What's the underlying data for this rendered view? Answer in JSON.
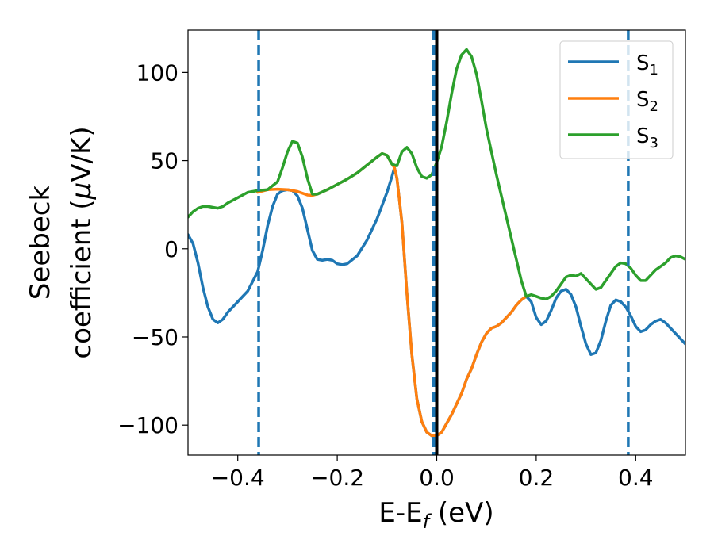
{
  "chart_data": {
    "type": "line",
    "title": "",
    "xlabel": "E-E",
    "xlabel_sub": "f",
    "xlabel_unit": " (eV)",
    "ylabel_line1": "Seebeck",
    "ylabel_line2_prefix": "coefficient  (",
    "ylabel_mu": "μ",
    "ylabel_line2_suffix": "V/K)",
    "xlim": [
      -0.5,
      0.5
    ],
    "ylim": [
      -117,
      124
    ],
    "xticks": [
      -0.4,
      -0.2,
      0.0,
      0.2,
      0.4
    ],
    "xtick_labels": [
      "−0.4",
      "−0.2",
      "0.0",
      "0.2",
      "0.4"
    ],
    "yticks": [
      -100,
      -50,
      0,
      50,
      100
    ],
    "ytick_labels": [
      "−100",
      "−50",
      "0",
      "50",
      "100"
    ],
    "grid": false,
    "legend_position": "top-right",
    "vertical_lines": [
      {
        "x": -0.358,
        "style": "dashed",
        "color": "#1f77b4"
      },
      {
        "x": -0.006,
        "style": "dashed",
        "color": "#1f77b4"
      },
      {
        "x": 0.0,
        "style": "solid",
        "color": "#000000"
      },
      {
        "x": 0.385,
        "style": "dashed",
        "color": "#1f77b4"
      }
    ],
    "series": [
      {
        "name": "S",
        "name_sub": "1",
        "color": "#1f77b4",
        "points": [
          [
            -0.5,
            8
          ],
          [
            -0.49,
            3
          ],
          [
            -0.48,
            -8
          ],
          [
            -0.47,
            -22
          ],
          [
            -0.46,
            -33
          ],
          [
            -0.45,
            -40
          ],
          [
            -0.44,
            -42
          ],
          [
            -0.43,
            -40
          ],
          [
            -0.42,
            -36
          ],
          [
            -0.4,
            -30
          ],
          [
            -0.38,
            -24
          ],
          [
            -0.36,
            -13
          ],
          [
            -0.35,
            -1
          ],
          [
            -0.34,
            13
          ],
          [
            -0.33,
            24
          ],
          [
            -0.32,
            31
          ],
          [
            -0.31,
            33
          ],
          [
            -0.3,
            33.5
          ],
          [
            -0.29,
            33
          ],
          [
            -0.28,
            30
          ],
          [
            -0.27,
            23
          ],
          [
            -0.26,
            11
          ],
          [
            -0.25,
            -1
          ],
          [
            -0.24,
            -6
          ],
          [
            -0.23,
            -6.5
          ],
          [
            -0.22,
            -6
          ],
          [
            -0.21,
            -6.5
          ],
          [
            -0.2,
            -8.5
          ],
          [
            -0.19,
            -9
          ],
          [
            -0.18,
            -8.5
          ],
          [
            -0.16,
            -4
          ],
          [
            -0.14,
            5
          ],
          [
            -0.12,
            17
          ],
          [
            -0.1,
            32
          ],
          [
            -0.09,
            41
          ],
          [
            -0.085,
            46
          ],
          [
            -0.08,
            40
          ],
          [
            -0.07,
            15
          ],
          [
            -0.06,
            -25
          ],
          [
            -0.05,
            -60
          ],
          [
            -0.04,
            -85
          ],
          [
            -0.03,
            -98
          ],
          [
            -0.02,
            -104
          ],
          [
            -0.01,
            -106
          ],
          [
            0.0,
            -106
          ],
          [
            0.01,
            -104
          ],
          [
            0.02,
            -99
          ],
          [
            0.03,
            -94
          ],
          [
            0.04,
            -88
          ],
          [
            0.05,
            -82
          ],
          [
            0.06,
            -74
          ],
          [
            0.07,
            -68
          ],
          [
            0.08,
            -60
          ],
          [
            0.09,
            -53
          ],
          [
            0.1,
            -48
          ],
          [
            0.11,
            -45
          ],
          [
            0.12,
            -44
          ],
          [
            0.13,
            -42
          ],
          [
            0.14,
            -39
          ],
          [
            0.15,
            -36
          ],
          [
            0.16,
            -32
          ],
          [
            0.17,
            -29
          ],
          [
            0.18,
            -27
          ],
          [
            0.19,
            -30
          ],
          [
            0.2,
            -39
          ],
          [
            0.21,
            -43
          ],
          [
            0.22,
            -41
          ],
          [
            0.23,
            -35
          ],
          [
            0.24,
            -28
          ],
          [
            0.25,
            -24
          ],
          [
            0.26,
            -23
          ],
          [
            0.27,
            -26
          ],
          [
            0.28,
            -33
          ],
          [
            0.29,
            -44
          ],
          [
            0.3,
            -54
          ],
          [
            0.31,
            -60
          ],
          [
            0.32,
            -59
          ],
          [
            0.33,
            -52
          ],
          [
            0.34,
            -41
          ],
          [
            0.35,
            -32
          ],
          [
            0.36,
            -29
          ],
          [
            0.37,
            -30
          ],
          [
            0.38,
            -33
          ],
          [
            0.39,
            -38
          ],
          [
            0.4,
            -44
          ],
          [
            0.41,
            -47
          ],
          [
            0.42,
            -46
          ],
          [
            0.43,
            -43
          ],
          [
            0.44,
            -41
          ],
          [
            0.45,
            -40
          ],
          [
            0.46,
            -42
          ],
          [
            0.47,
            -45
          ],
          [
            0.48,
            -48
          ],
          [
            0.49,
            -51
          ],
          [
            0.5,
            -54
          ]
        ]
      },
      {
        "name": "S",
        "name_sub": "2",
        "color": "#ff7f0e",
        "points": [
          [
            -0.36,
            32
          ],
          [
            -0.34,
            33.5
          ],
          [
            -0.32,
            33.8
          ],
          [
            -0.3,
            33.5
          ],
          [
            -0.28,
            32.5
          ],
          [
            -0.26,
            30.5
          ],
          [
            -0.25,
            30.3
          ],
          [
            -0.24,
            31
          ],
          [
            -0.22,
            33.5
          ],
          [
            -0.2,
            36.5
          ],
          [
            -0.18,
            39.5
          ],
          [
            -0.16,
            43
          ],
          [
            -0.14,
            47.5
          ],
          [
            -0.12,
            52
          ],
          [
            -0.11,
            54
          ],
          [
            -0.1,
            53
          ],
          [
            -0.09,
            48
          ],
          [
            -0.085,
            46
          ],
          [
            -0.08,
            40
          ],
          [
            -0.07,
            15
          ],
          [
            -0.06,
            -25
          ],
          [
            -0.05,
            -60
          ],
          [
            -0.04,
            -85
          ],
          [
            -0.03,
            -98
          ],
          [
            -0.02,
            -104
          ],
          [
            -0.01,
            -106
          ],
          [
            0.0,
            -106
          ],
          [
            0.01,
            -104
          ],
          [
            0.02,
            -99
          ],
          [
            0.03,
            -94
          ],
          [
            0.04,
            -88
          ],
          [
            0.05,
            -82
          ],
          [
            0.06,
            -74
          ],
          [
            0.07,
            -68
          ],
          [
            0.08,
            -60
          ],
          [
            0.09,
            -53
          ],
          [
            0.1,
            -48
          ],
          [
            0.11,
            -45
          ],
          [
            0.12,
            -44
          ],
          [
            0.13,
            -42
          ],
          [
            0.14,
            -39
          ],
          [
            0.15,
            -36
          ],
          [
            0.16,
            -32
          ],
          [
            0.17,
            -29
          ],
          [
            0.18,
            -27
          ]
        ]
      },
      {
        "name": "S",
        "name_sub": "3",
        "color": "#2ca02c",
        "points": [
          [
            -0.5,
            18
          ],
          [
            -0.49,
            21
          ],
          [
            -0.48,
            23
          ],
          [
            -0.47,
            24
          ],
          [
            -0.46,
            24
          ],
          [
            -0.45,
            23.5
          ],
          [
            -0.44,
            23
          ],
          [
            -0.43,
            24
          ],
          [
            -0.42,
            26
          ],
          [
            -0.4,
            29
          ],
          [
            -0.38,
            32
          ],
          [
            -0.36,
            33
          ],
          [
            -0.34,
            33.5
          ],
          [
            -0.32,
            38
          ],
          [
            -0.31,
            46
          ],
          [
            -0.3,
            55
          ],
          [
            -0.29,
            61
          ],
          [
            -0.28,
            60
          ],
          [
            -0.27,
            52
          ],
          [
            -0.26,
            40
          ],
          [
            -0.25,
            31
          ],
          [
            -0.24,
            31
          ],
          [
            -0.22,
            33.5
          ],
          [
            -0.2,
            36.5
          ],
          [
            -0.18,
            39.5
          ],
          [
            -0.16,
            43
          ],
          [
            -0.14,
            47.5
          ],
          [
            -0.12,
            52
          ],
          [
            -0.11,
            54
          ],
          [
            -0.1,
            53
          ],
          [
            -0.09,
            48
          ],
          [
            -0.08,
            47
          ],
          [
            -0.07,
            55
          ],
          [
            -0.06,
            57.5
          ],
          [
            -0.05,
            54
          ],
          [
            -0.04,
            46
          ],
          [
            -0.03,
            41
          ],
          [
            -0.02,
            40
          ],
          [
            -0.01,
            42
          ],
          [
            0.0,
            49
          ],
          [
            0.01,
            58
          ],
          [
            0.02,
            72
          ],
          [
            0.03,
            88
          ],
          [
            0.04,
            102
          ],
          [
            0.05,
            110
          ],
          [
            0.06,
            113
          ],
          [
            0.07,
            109
          ],
          [
            0.08,
            99
          ],
          [
            0.09,
            84
          ],
          [
            0.1,
            68
          ],
          [
            0.11,
            55
          ],
          [
            0.12,
            42
          ],
          [
            0.13,
            30
          ],
          [
            0.14,
            18
          ],
          [
            0.15,
            6
          ],
          [
            0.16,
            -6
          ],
          [
            0.17,
            -18
          ],
          [
            0.18,
            -27
          ],
          [
            0.19,
            -26
          ],
          [
            0.2,
            -27
          ],
          [
            0.21,
            -28
          ],
          [
            0.22,
            -28.5
          ],
          [
            0.23,
            -27
          ],
          [
            0.24,
            -24
          ],
          [
            0.25,
            -20
          ],
          [
            0.26,
            -16
          ],
          [
            0.27,
            -15
          ],
          [
            0.28,
            -15.5
          ],
          [
            0.29,
            -14
          ],
          [
            0.3,
            -17
          ],
          [
            0.31,
            -20
          ],
          [
            0.32,
            -23
          ],
          [
            0.33,
            -22
          ],
          [
            0.34,
            -18
          ],
          [
            0.35,
            -14
          ],
          [
            0.36,
            -10
          ],
          [
            0.37,
            -8
          ],
          [
            0.38,
            -8.5
          ],
          [
            0.39,
            -11
          ],
          [
            0.4,
            -15
          ],
          [
            0.41,
            -18
          ],
          [
            0.42,
            -18
          ],
          [
            0.43,
            -15
          ],
          [
            0.44,
            -12
          ],
          [
            0.45,
            -10
          ],
          [
            0.46,
            -8
          ],
          [
            0.47,
            -5
          ],
          [
            0.48,
            -4
          ],
          [
            0.49,
            -4.5
          ],
          [
            0.5,
            -6
          ]
        ]
      }
    ]
  }
}
